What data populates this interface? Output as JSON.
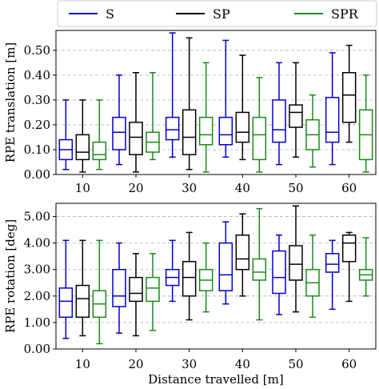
{
  "legend": [
    {
      "name": "S",
      "color": "#0000cc"
    },
    {
      "name": "SP",
      "color": "#000000"
    },
    {
      "name": "SPR",
      "color": "#1a8a1a"
    }
  ],
  "chart_data": [
    {
      "type": "box",
      "ylabel": "RPE translation [m]",
      "xlabel": "",
      "categories": [
        "10",
        "20",
        "30",
        "40",
        "50",
        "60"
      ],
      "yticks": [
        "0.00",
        "0.10",
        "0.20",
        "0.30",
        "0.40",
        "0.50"
      ],
      "ylim": [
        0,
        0.58
      ],
      "grid": "horizontal dashed",
      "series": [
        {
          "name": "S",
          "boxes": [
            {
              "min": 0.02,
              "q1": 0.06,
              "median": 0.1,
              "q3": 0.14,
              "max": 0.3
            },
            {
              "min": 0.04,
              "q1": 0.1,
              "median": 0.17,
              "q3": 0.23,
              "max": 0.4
            },
            {
              "min": 0.07,
              "q1": 0.14,
              "median": 0.18,
              "q3": 0.23,
              "max": 0.57
            },
            {
              "min": 0.07,
              "q1": 0.12,
              "median": 0.16,
              "q3": 0.23,
              "max": 0.54
            },
            {
              "min": 0.04,
              "q1": 0.13,
              "median": 0.18,
              "q3": 0.3,
              "max": 0.45
            },
            {
              "min": 0.04,
              "q1": 0.13,
              "median": 0.17,
              "q3": 0.31,
              "max": 0.49
            }
          ]
        },
        {
          "name": "SP",
          "boxes": [
            {
              "min": 0.01,
              "q1": 0.06,
              "median": 0.09,
              "q3": 0.16,
              "max": 0.3
            },
            {
              "min": 0.01,
              "q1": 0.08,
              "median": 0.15,
              "q3": 0.21,
              "max": 0.41
            },
            {
              "min": 0.02,
              "q1": 0.08,
              "median": 0.15,
              "q3": 0.26,
              "max": 0.55
            },
            {
              "min": 0.06,
              "q1": 0.13,
              "median": 0.17,
              "q3": 0.25,
              "max": 0.48
            },
            {
              "min": 0.07,
              "q1": 0.19,
              "median": 0.25,
              "q3": 0.28,
              "max": 0.45
            },
            {
              "min": 0.13,
              "q1": 0.21,
              "median": 0.32,
              "q3": 0.41,
              "max": 0.52
            }
          ]
        },
        {
          "name": "SPR",
          "boxes": [
            {
              "min": 0.02,
              "q1": 0.06,
              "median": 0.08,
              "q3": 0.13,
              "max": 0.3
            },
            {
              "min": 0.06,
              "q1": 0.09,
              "median": 0.13,
              "q3": 0.17,
              "max": 0.41
            },
            {
              "min": 0.01,
              "q1": 0.12,
              "median": 0.16,
              "q3": 0.23,
              "max": 0.45
            },
            {
              "min": 0.01,
              "q1": 0.06,
              "median": 0.16,
              "q3": 0.23,
              "max": 0.39
            },
            {
              "min": 0.03,
              "q1": 0.1,
              "median": 0.16,
              "q3": 0.22,
              "max": 0.32
            },
            {
              "min": 0.01,
              "q1": 0.06,
              "median": 0.16,
              "q3": 0.26,
              "max": 0.4
            }
          ]
        }
      ]
    },
    {
      "type": "box",
      "ylabel": "RPE rotation [deg]",
      "xlabel": "Distance travelled [m]",
      "categories": [
        "10",
        "20",
        "30",
        "40",
        "50",
        "60"
      ],
      "yticks": [
        "0.00",
        "1.00",
        "2.00",
        "3.00",
        "4.00",
        "5.00"
      ],
      "ylim": [
        0,
        5.5
      ],
      "grid": "horizontal dashed",
      "series": [
        {
          "name": "S",
          "boxes": [
            {
              "min": 0.4,
              "q1": 1.2,
              "median": 1.8,
              "q3": 2.3,
              "max": 4.1
            },
            {
              "min": 0.6,
              "q1": 1.6,
              "median": 2.0,
              "q3": 3.0,
              "max": 4.0
            },
            {
              "min": 1.8,
              "q1": 2.4,
              "median": 2.7,
              "q3": 3.0,
              "max": 4.1
            },
            {
              "min": 1.7,
              "q1": 2.2,
              "median": 2.8,
              "q3": 4.0,
              "max": 4.8
            },
            {
              "min": 1.3,
              "q1": 2.1,
              "median": 2.7,
              "q3": 3.7,
              "max": 4.3
            },
            {
              "min": 1.5,
              "q1": 2.9,
              "median": 3.2,
              "q3": 3.6,
              "max": 4.1
            }
          ]
        },
        {
          "name": "SP",
          "boxes": [
            {
              "min": 0.5,
              "q1": 1.2,
              "median": 1.9,
              "q3": 2.4,
              "max": 4.1
            },
            {
              "min": 0.5,
              "q1": 1.8,
              "median": 2.1,
              "q3": 2.7,
              "max": 3.6
            },
            {
              "min": 1.1,
              "q1": 2.0,
              "median": 2.7,
              "q3": 3.3,
              "max": 4.4
            },
            {
              "min": 2.0,
              "q1": 3.0,
              "median": 3.4,
              "q3": 4.3,
              "max": 5.1
            },
            {
              "min": 1.4,
              "q1": 2.6,
              "median": 3.2,
              "q3": 3.9,
              "max": 5.4
            },
            {
              "min": 1.8,
              "q1": 3.3,
              "median": 4.0,
              "q3": 4.3,
              "max": 4.4
            }
          ]
        },
        {
          "name": "SPR",
          "boxes": [
            {
              "min": 0.2,
              "q1": 1.2,
              "median": 1.7,
              "q3": 2.2,
              "max": 4.1
            },
            {
              "min": 0.7,
              "q1": 1.8,
              "median": 2.3,
              "q3": 2.7,
              "max": 3.6
            },
            {
              "min": 1.4,
              "q1": 2.2,
              "median": 2.6,
              "q3": 3.0,
              "max": 4.0
            },
            {
              "min": 1.1,
              "q1": 2.6,
              "median": 2.9,
              "q3": 3.4,
              "max": 5.3
            },
            {
              "min": 1.2,
              "q1": 2.0,
              "median": 2.5,
              "q3": 3.0,
              "max": 4.3
            },
            {
              "min": 2.0,
              "q1": 2.6,
              "median": 2.8,
              "q3": 3.0,
              "max": 4.2
            }
          ]
        }
      ]
    }
  ]
}
